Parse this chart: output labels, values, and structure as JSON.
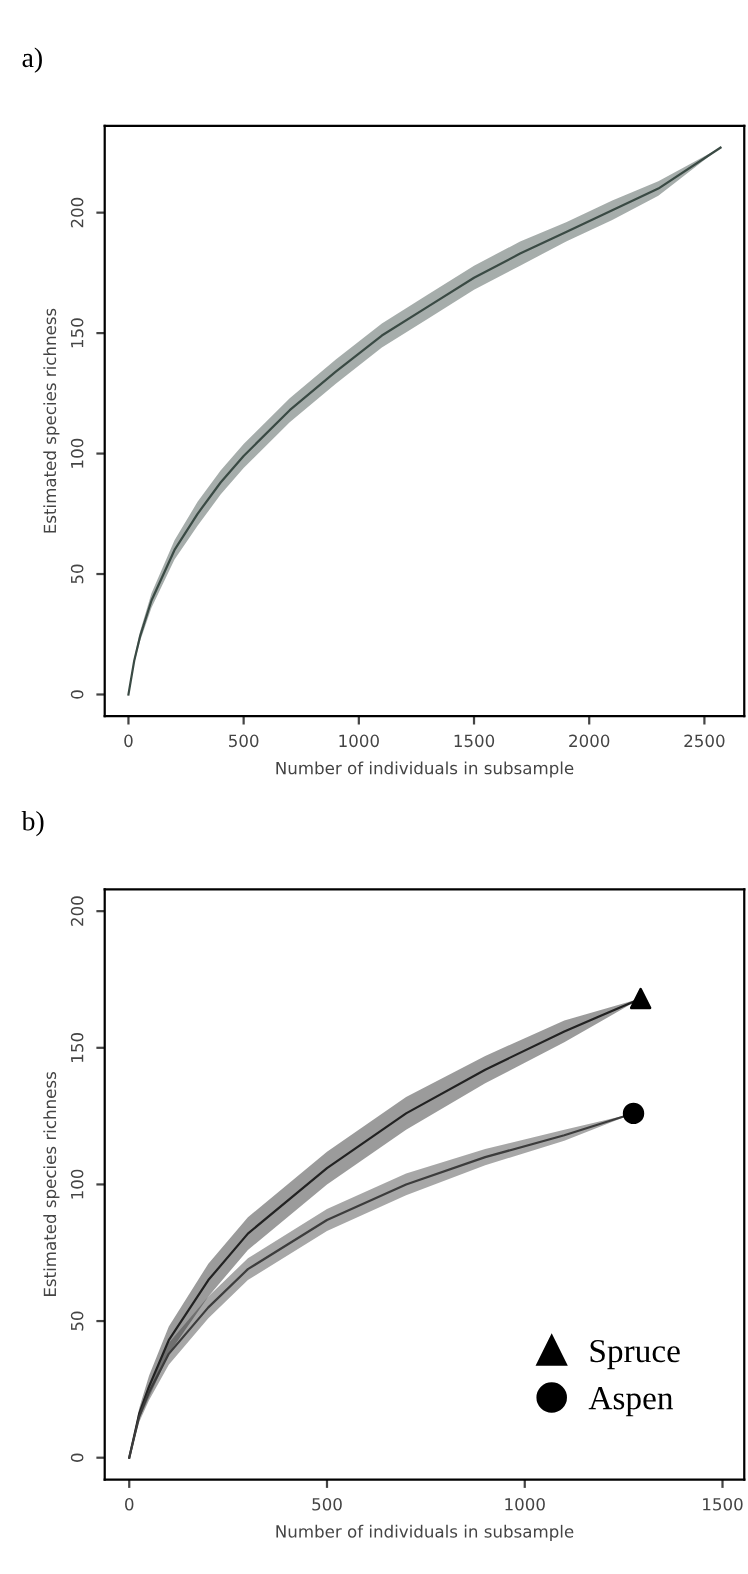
{
  "chart_data": [
    {
      "type": "line",
      "title": "a)",
      "xlabel": "Number of individuals in subsample",
      "ylabel": "Estimated species richness",
      "xlim": [
        -103,
        2673
      ],
      "ylim": [
        -9,
        236
      ],
      "xticks": [
        0,
        500,
        1000,
        1500,
        2000,
        2500
      ],
      "yticks": [
        0,
        50,
        100,
        150,
        200
      ],
      "grid": false,
      "legend": false,
      "series": [
        {
          "color": "#3a4a44",
          "x": [
            0,
            25,
            50,
            100,
            200,
            300,
            400,
            500,
            700,
            900,
            1100,
            1300,
            1500,
            1700,
            1900,
            2100,
            2300,
            2570
          ],
          "values": [
            0,
            14,
            24,
            39,
            60,
            75,
            88,
            99,
            118,
            134,
            149,
            161,
            173,
            183,
            192,
            201,
            210,
            227
          ],
          "lower": [
            0,
            13,
            22,
            36,
            56,
            70,
            83,
            94,
            113,
            129,
            144,
            156,
            168,
            178,
            188,
            197,
            207,
            227
          ],
          "upper": [
            0,
            15,
            26,
            42,
            64,
            80,
            93,
            104,
            123,
            139,
            154,
            166,
            178,
            188,
            196,
            205,
            213,
            227
          ]
        }
      ]
    },
    {
      "type": "line",
      "title": "b)",
      "xlabel": "Number of individuals in subsample",
      "ylabel": "Estimated species richness",
      "xlim": [
        -62,
        1555
      ],
      "ylim": [
        -8,
        208
      ],
      "xticks": [
        0,
        500,
        1000,
        1500
      ],
      "yticks": [
        0,
        50,
        100,
        150,
        200
      ],
      "grid": false,
      "legend": "bottom right",
      "series": [
        {
          "color": "#222222",
          "x": [
            0,
            25,
            50,
            100,
            200,
            300,
            500,
            700,
            900,
            1100,
            1293
          ],
          "values": [
            0,
            16,
            26,
            43,
            65,
            82,
            106,
            126,
            142,
            156,
            168
          ],
          "lower": [
            0,
            14,
            22,
            38,
            59,
            76,
            100,
            120,
            137,
            152,
            168
          ],
          "upper": [
            0,
            18,
            30,
            48,
            71,
            88,
            112,
            132,
            147,
            160,
            168
          ]
        },
        {
          "color": "#3c3c3c",
          "x": [
            0,
            25,
            50,
            100,
            200,
            300,
            500,
            700,
            900,
            1100,
            1275
          ],
          "values": [
            0,
            15,
            24,
            38,
            55,
            69,
            87,
            100,
            110,
            118,
            126
          ],
          "lower": [
            0,
            13,
            21,
            34,
            51,
            65,
            83,
            96,
            107,
            116,
            126
          ],
          "upper": [
            0,
            17,
            27,
            42,
            59,
            73,
            91,
            104,
            113,
            120,
            126
          ]
        },
        {
          "type": "scatter",
          "name": "Spruce",
          "marker": "triangle",
          "color": "#000000",
          "x": [
            1293
          ],
          "values": [
            168
          ]
        },
        {
          "type": "scatter",
          "name": "Aspen",
          "marker": "circle",
          "color": "#000000",
          "x": [
            1275
          ],
          "values": [
            126
          ]
        }
      ]
    }
  ]
}
